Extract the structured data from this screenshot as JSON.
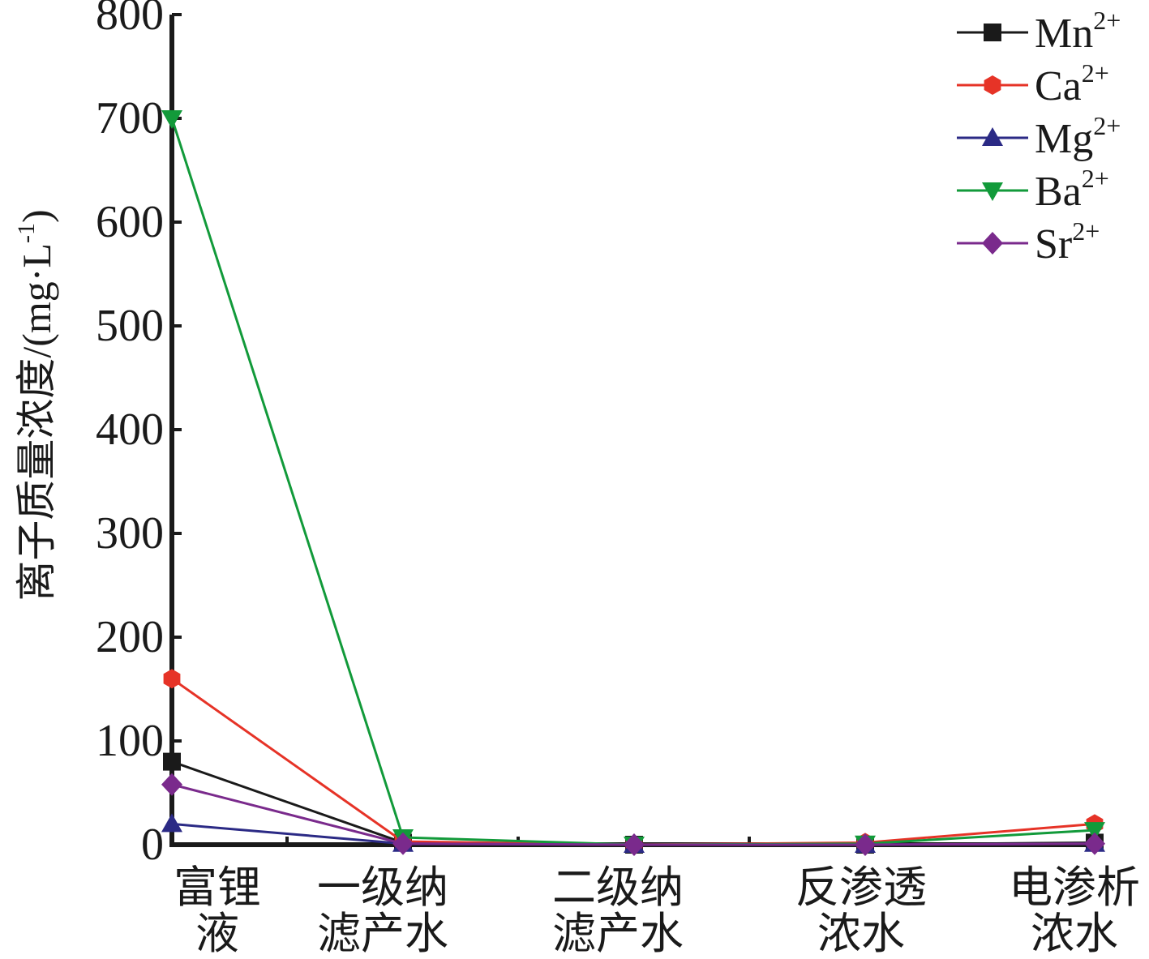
{
  "chart_data": {
    "type": "line",
    "categories": [
      [
        "富锂",
        "液"
      ],
      [
        "一级纳",
        "滤产水"
      ],
      [
        "二级纳",
        "滤产水"
      ],
      [
        "反渗透",
        "浓水"
      ],
      [
        "电渗析",
        "浓水"
      ]
    ],
    "ylabel": "离子质量浓度/(mg·L⁻¹)",
    "ylabel_main": "离子质量浓度/(mg·L",
    "ylabel_sup": "-1",
    "ylabel_close": ")",
    "ylim": [
      0,
      800
    ],
    "yticks": [
      0,
      100,
      200,
      300,
      400,
      500,
      600,
      700,
      800
    ],
    "grid": false,
    "legend_position": "top-right",
    "series": [
      {
        "name": "Mn",
        "sup": "2+",
        "color": "#1a1a1a",
        "marker": "square",
        "values": [
          80,
          2,
          0,
          0,
          2
        ]
      },
      {
        "name": "Ca",
        "sup": "2+",
        "color": "#e63327",
        "marker": "hexagon",
        "values": [
          160,
          3,
          0,
          2,
          20
        ]
      },
      {
        "name": "Mg",
        "sup": "2+",
        "color": "#2b2a85",
        "marker": "triangle-up",
        "values": [
          20,
          1,
          0,
          0,
          1
        ]
      },
      {
        "name": "Ba",
        "sup": "2+",
        "color": "#129a3a",
        "marker": "triangle-down",
        "values": [
          700,
          7,
          0,
          1,
          14
        ]
      },
      {
        "name": "Sr",
        "sup": "2+",
        "color": "#7a2a8c",
        "marker": "diamond",
        "values": [
          58,
          1,
          0,
          0,
          1
        ]
      }
    ]
  }
}
